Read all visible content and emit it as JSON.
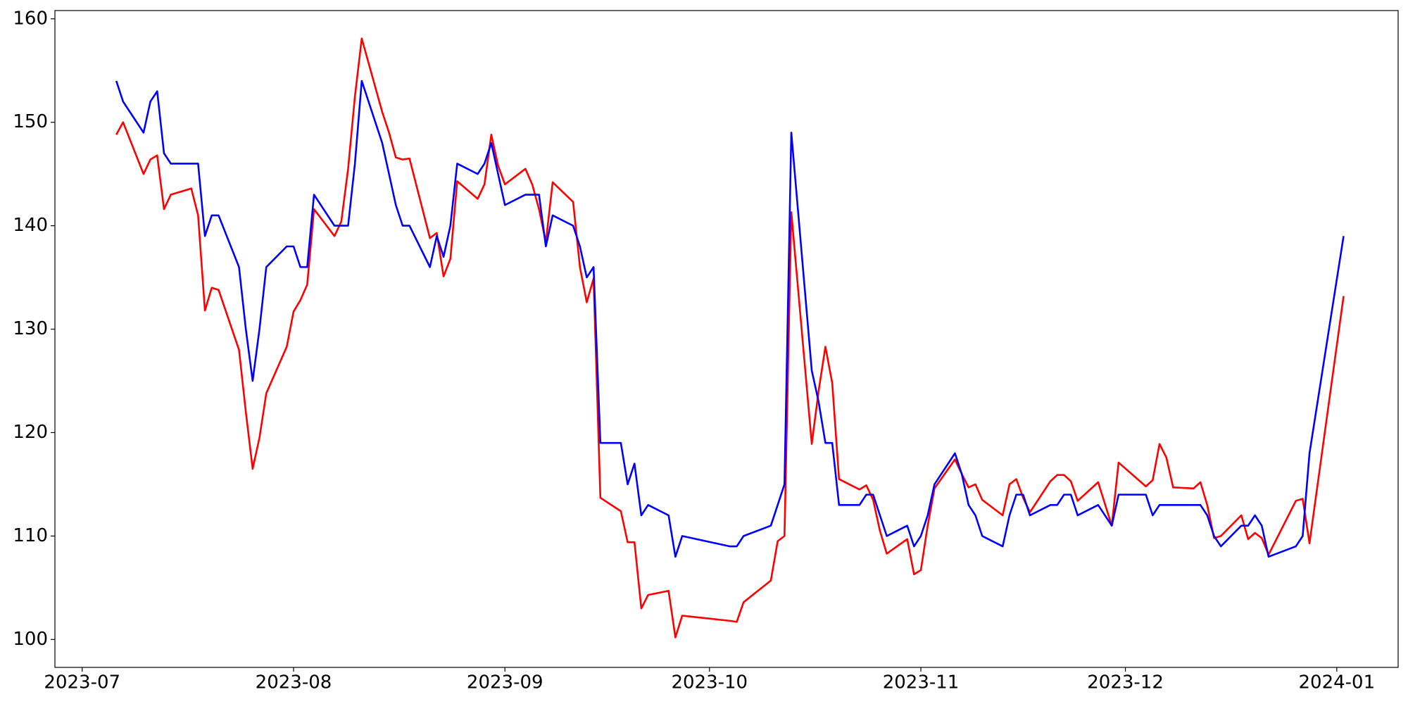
{
  "chart_data": {
    "type": "line",
    "x": [
      "2023-07-06",
      "2023-07-07",
      "2023-07-10",
      "2023-07-11",
      "2023-07-12",
      "2023-07-13",
      "2023-07-14",
      "2023-07-17",
      "2023-07-18",
      "2023-07-19",
      "2023-07-20",
      "2023-07-21",
      "2023-07-24",
      "2023-07-25",
      "2023-07-26",
      "2023-07-27",
      "2023-07-28",
      "2023-07-31",
      "2023-08-01",
      "2023-08-02",
      "2023-08-03",
      "2023-08-04",
      "2023-08-07",
      "2023-08-08",
      "2023-08-09",
      "2023-08-10",
      "2023-08-11",
      "2023-08-14",
      "2023-08-15",
      "2023-08-16",
      "2023-08-17",
      "2023-08-18",
      "2023-08-21",
      "2023-08-22",
      "2023-08-23",
      "2023-08-24",
      "2023-08-25",
      "2023-08-28",
      "2023-08-29",
      "2023-08-30",
      "2023-08-31",
      "2023-09-01",
      "2023-09-04",
      "2023-09-05",
      "2023-09-06",
      "2023-09-07",
      "2023-09-08",
      "2023-09-11",
      "2023-09-12",
      "2023-09-13",
      "2023-09-14",
      "2023-09-15",
      "2023-09-18",
      "2023-09-19",
      "2023-09-20",
      "2023-09-21",
      "2023-09-22",
      "2023-09-25",
      "2023-09-26",
      "2023-09-27",
      "2023-10-04",
      "2023-10-05",
      "2023-10-06",
      "2023-10-10",
      "2023-10-11",
      "2023-10-12",
      "2023-10-13",
      "2023-10-16",
      "2023-10-17",
      "2023-10-18",
      "2023-10-19",
      "2023-10-20",
      "2023-10-23",
      "2023-10-24",
      "2023-10-25",
      "2023-10-26",
      "2023-10-27",
      "2023-10-30",
      "2023-10-31",
      "2023-11-01",
      "2023-11-02",
      "2023-11-03",
      "2023-11-06",
      "2023-11-07",
      "2023-11-08",
      "2023-11-09",
      "2023-11-10",
      "2023-11-13",
      "2023-11-14",
      "2023-11-15",
      "2023-11-16",
      "2023-11-17",
      "2023-11-20",
      "2023-11-21",
      "2023-11-22",
      "2023-11-23",
      "2023-11-24",
      "2023-11-27",
      "2023-11-29",
      "2023-11-30",
      "2023-12-04",
      "2023-12-05",
      "2023-12-06",
      "2023-12-07",
      "2023-12-08",
      "2023-12-11",
      "2023-12-12",
      "2023-12-13",
      "2023-12-14",
      "2023-12-15",
      "2023-12-18",
      "2023-12-19",
      "2023-12-20",
      "2023-12-21",
      "2023-12-22",
      "2023-12-26",
      "2023-12-27",
      "2023-12-28",
      "2024-01-02"
    ],
    "series": [
      {
        "color": "red",
        "values": [
          148.8,
          150,
          145,
          146.4,
          146.8,
          141.6,
          143,
          143.6,
          141,
          131.8,
          134,
          133.8,
          128,
          122,
          116.5,
          119.5,
          123.8,
          128.3,
          131.7,
          132.8,
          134.3,
          141.6,
          139,
          140.4,
          145.5,
          152.5,
          158.1,
          151,
          149,
          146.6,
          146.4,
          146.5,
          138.8,
          139.3,
          135.1,
          136.8,
          144.3,
          142.6,
          144,
          148.8,
          145.8,
          144,
          145.5,
          144,
          141.6,
          138.4,
          144.2,
          142.3,
          136,
          132.6,
          134.9,
          113.7,
          112.4,
          109.4,
          109.4,
          103,
          104.3,
          104.7,
          100.2,
          102.3,
          101.8,
          101.7,
          103.6,
          105.7,
          109.5,
          110,
          141.3,
          118.9,
          124,
          128.3,
          124.8,
          115.5,
          114.5,
          114.9,
          113.5,
          110.5,
          108.3,
          109.7,
          106.3,
          106.7,
          111,
          114.6,
          117.4,
          116,
          114.7,
          115,
          113.5,
          112,
          115,
          115.5,
          113.7,
          112.3,
          115.3,
          115.9,
          115.9,
          115.3,
          113.4,
          115.2,
          111,
          117.1,
          114.8,
          115.4,
          118.9,
          117.6,
          114.7,
          114.6,
          115.2,
          113,
          109.8,
          110,
          112,
          109.7,
          110.3,
          109.8,
          108.2,
          113.4,
          113.6,
          109.3,
          133.2
        ]
      },
      {
        "color": "blue",
        "values": [
          154,
          152,
          149,
          152,
          153,
          147,
          146,
          146,
          146,
          139,
          141,
          141,
          136,
          130,
          125,
          130,
          136,
          138,
          138,
          136,
          136,
          143,
          140,
          140,
          140,
          146,
          154,
          148,
          145,
          142,
          140,
          140,
          136,
          139,
          137,
          140,
          146,
          145,
          146,
          148,
          145,
          142,
          143,
          143,
          143,
          138,
          141,
          140,
          138,
          135,
          136,
          119,
          119,
          115,
          117,
          112,
          113,
          112,
          108,
          110,
          109,
          109,
          110,
          111,
          113,
          115,
          149,
          126,
          123,
          119,
          119,
          113,
          113,
          114,
          114,
          112,
          110,
          111,
          109,
          110,
          112,
          115,
          118,
          116,
          113,
          112,
          110,
          109,
          112,
          114,
          114,
          112,
          113,
          113,
          114,
          114,
          112,
          113,
          111,
          114,
          114,
          112,
          113,
          113,
          113,
          113,
          113,
          112,
          110,
          109,
          111,
          111,
          112,
          111,
          108,
          109,
          110,
          118,
          139
        ]
      }
    ],
    "xlim": [
      "2023-06-27",
      "2024-01-10"
    ],
    "xticks": [
      {
        "value": "2023-07-01",
        "label": "2023-07"
      },
      {
        "value": "2023-08-01",
        "label": "2023-08"
      },
      {
        "value": "2023-09-01",
        "label": "2023-09"
      },
      {
        "value": "2023-10-01",
        "label": "2023-10"
      },
      {
        "value": "2023-11-01",
        "label": "2023-11"
      },
      {
        "value": "2023-12-01",
        "label": "2023-12"
      },
      {
        "value": "2024-01-01",
        "label": "2024-01"
      }
    ],
    "ylim": [
      97.3,
      160.8
    ],
    "yticks": [
      100,
      110,
      120,
      130,
      140,
      150,
      160
    ],
    "grid": false
  }
}
